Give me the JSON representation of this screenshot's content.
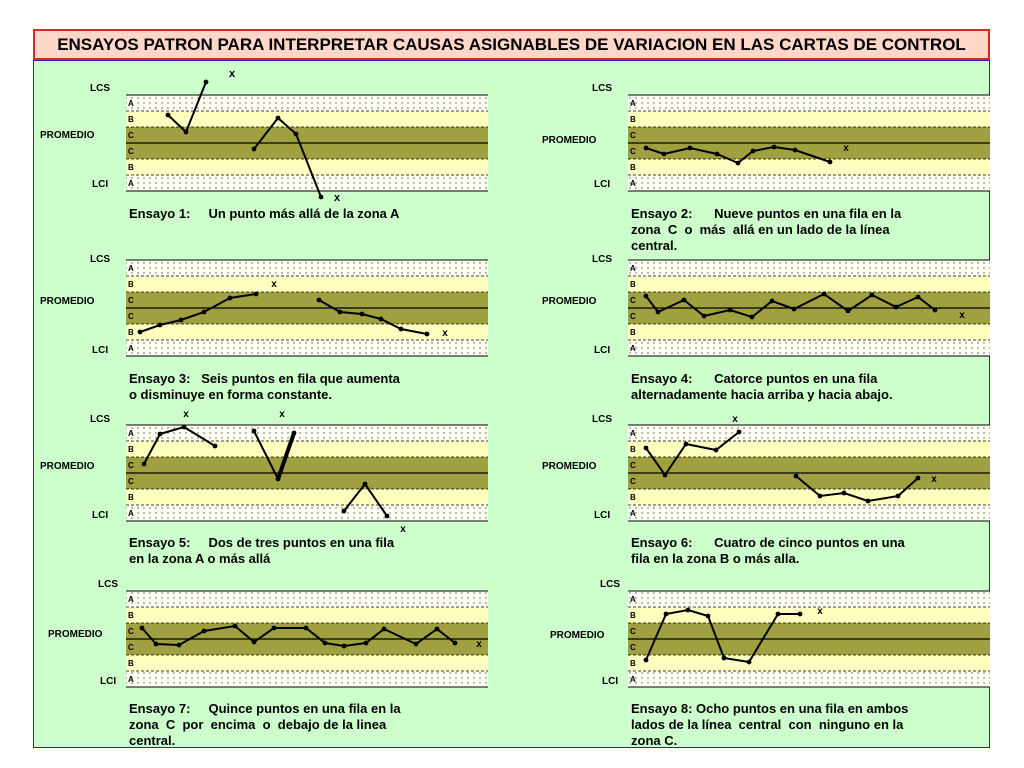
{
  "title": "ENSAYOS PATRON PARA INTERPRETAR CAUSAS ASIGNABLES DE VARIACION EN LAS CARTAS DE CONTROL",
  "labels": {
    "lcs": "LCS",
    "promedio": "PROMEDIO",
    "lci": "LCI",
    "marker": "x"
  },
  "zones": [
    "A",
    "B",
    "C",
    "C",
    "B",
    "A"
  ],
  "colors": {
    "zoneA": "#fffff4",
    "zoneB": "#ffffc0",
    "zoneC": "#a0a040",
    "line": "#000000",
    "border": "#d03020",
    "panel": "#ccffcc"
  },
  "charts": [
    {
      "caption": [
        "Ensayo 1:     Un punto más allá de la zona A"
      ]
    },
    {
      "caption": [
        "Ensayo 2:      Nueve puntos en una fila en la",
        "zona  C  o  más  allá en un lado de la línea",
        "central."
      ]
    },
    {
      "caption": [
        "Ensayo 3:   Seis puntos en fila que aumenta",
        "o disminuye en forma constante."
      ]
    },
    {
      "caption": [
        "Ensayo 4:      Catorce puntos en una fila",
        "alternadamente hacia arriba y hacia abajo."
      ]
    },
    {
      "caption": [
        "Ensayo 5:     Dos de tres puntos en una fila",
        "en la zona A o más allá"
      ]
    },
    {
      "caption": [
        "Ensayo 6:      Cuatro de cinco puntos en una",
        "fila en la zona B o más alla."
      ]
    },
    {
      "caption": [
        "Ensayo 7:     Quince puntos en una fila en la",
        "zona  C  por  encima  o  debajo de la linea",
        "central."
      ]
    },
    {
      "caption": [
        "Ensayo 8: Ocho puntos en una fila en ambos",
        "lados de la línea  central  con  ninguno en la",
        "zona C."
      ]
    }
  ]
}
